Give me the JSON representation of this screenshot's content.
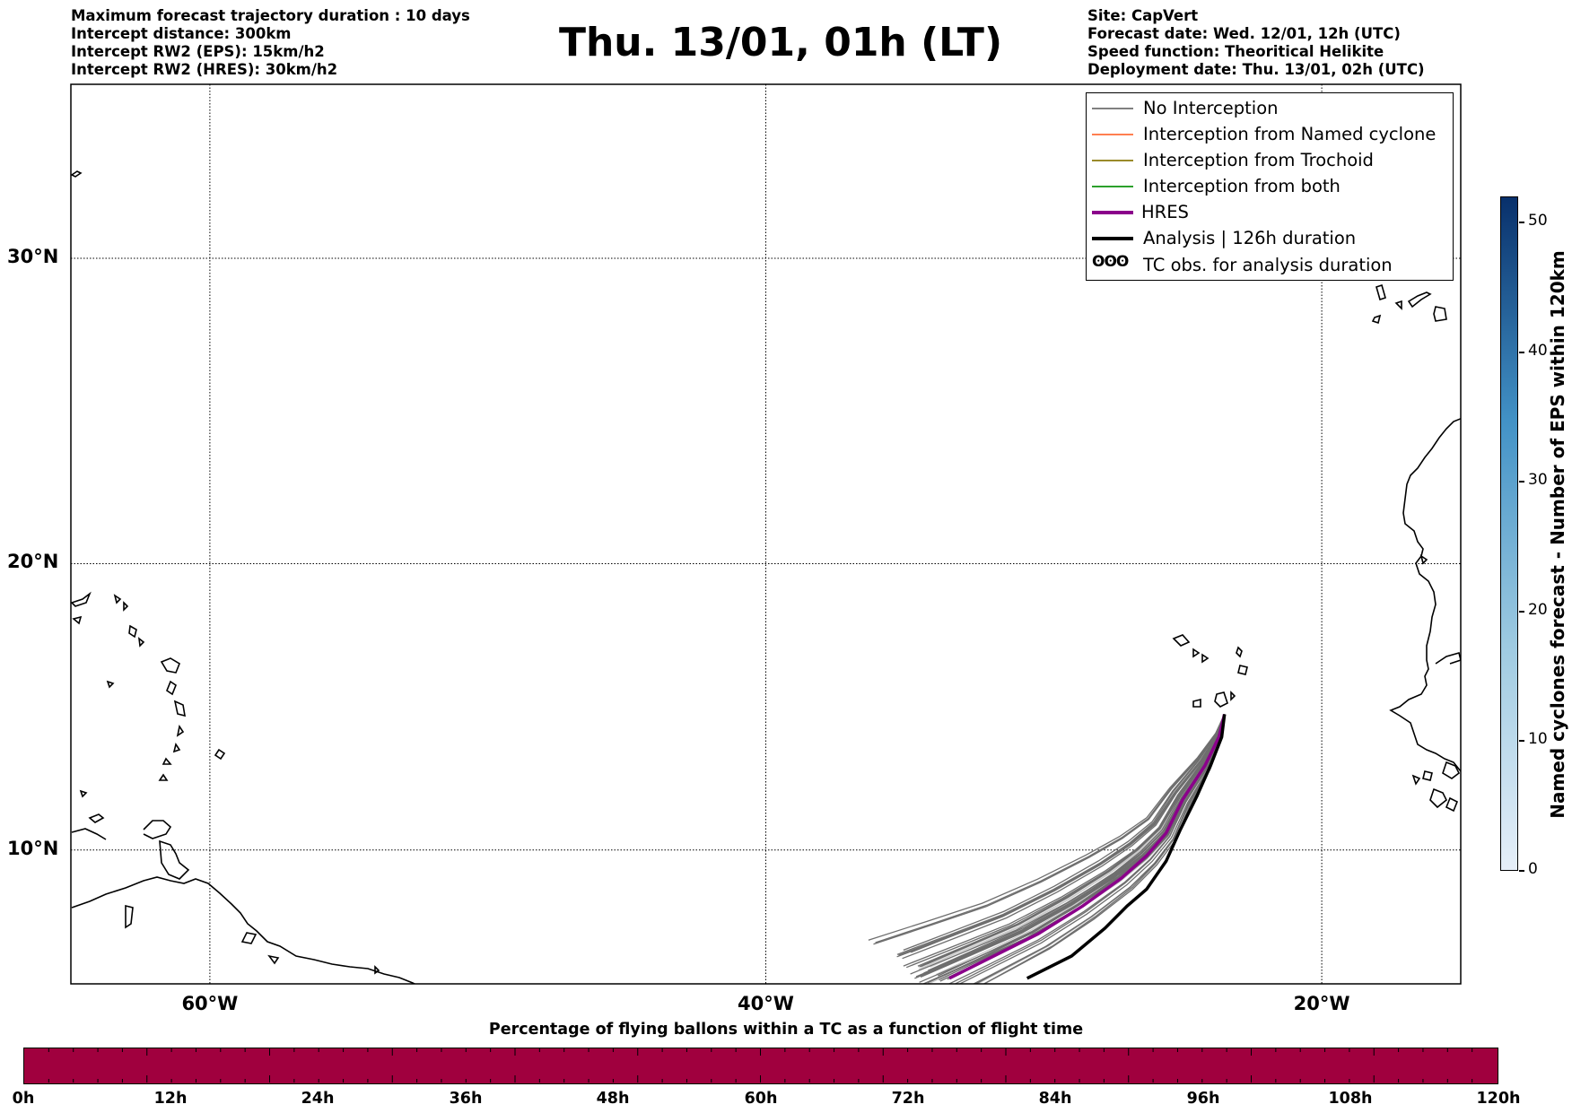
{
  "header_left": [
    "Maximum forecast trajectory duration : 10 days",
    "Intercept distance: 300km",
    "Intercept RW2 (EPS):  15km/h2",
    "Intercept RW2 (HRES): 30km/h2"
  ],
  "header_right": [
    "Site: CapVert",
    "Forecast date: Wed. 12/01, 12h (UTC)",
    "Speed function: Theoritical Helikite",
    "Deployment date: Thu. 13/01, 02h (UTC)"
  ],
  "title": "Thu. 13/01, 01h (LT)",
  "map": {
    "lat_labels": [
      "30°N",
      "20°N",
      "10°N"
    ],
    "lon_labels": [
      "60°W",
      "40°W",
      "20°W"
    ],
    "lat_lines": [
      30,
      20,
      10
    ],
    "lon_lines": [
      -60,
      -40,
      -20
    ],
    "lon_range": [
      -65,
      -15
    ],
    "lat_range": [
      5.2,
      35.3
    ],
    "grid": "dotted"
  },
  "legend": {
    "position": "top-right",
    "items": [
      {
        "label": "No Interception",
        "color": "#808080",
        "style": "thin"
      },
      {
        "label": "Interception from Named cyclone",
        "color": "#ff7f50",
        "style": "thin"
      },
      {
        "label": "Interception from Trochoid",
        "color": "#9a8a2a",
        "style": "thin"
      },
      {
        "label": "Interception from both",
        "color": "#2ca02c",
        "style": "thin"
      },
      {
        "label": "HRES",
        "color": "#8b008b",
        "style": "thick"
      },
      {
        "label": "Analysis | 126h duration",
        "color": "#000000",
        "style": "thick"
      },
      {
        "label": "TC obs. for analysis duration",
        "glyph": "ʘʘʘ",
        "color": "#000000",
        "style": "glyph"
      }
    ]
  },
  "colorbar_vertical": {
    "title": "Named cyclones forecast - Number of EPS within 120km",
    "ticks": [
      "0",
      "10",
      "20",
      "30",
      "40",
      "50"
    ],
    "range": [
      0,
      52
    ],
    "colors": [
      "#e6eff9",
      "#9ecae1",
      "#4292c6",
      "#08306b"
    ]
  },
  "colorbar_horizontal": {
    "title": "Percentage of flying ballons within a TC as a function of flight time",
    "ticks": [
      "0h",
      "12h",
      "24h",
      "36h",
      "48h",
      "60h",
      "72h",
      "84h",
      "96h",
      "108h",
      "120h"
    ],
    "color": "#a0003e"
  },
  "trajectories": {
    "origin": [
      -23.5,
      14.8
    ],
    "hres": [
      [
        -23.5,
        14.8
      ],
      [
        -23.7,
        14.0
      ],
      [
        -24.2,
        13.0
      ],
      [
        -25.0,
        11.8
      ],
      [
        -25.6,
        10.6
      ],
      [
        -26.3,
        9.8
      ],
      [
        -27.2,
        9.0
      ],
      [
        -28.6,
        8.0
      ],
      [
        -30.2,
        7.0
      ],
      [
        -31.8,
        6.2
      ],
      [
        -33.4,
        5.4
      ]
    ],
    "analysis": [
      [
        -23.5,
        14.8
      ],
      [
        -23.6,
        14.0
      ],
      [
        -24.0,
        13.0
      ],
      [
        -24.5,
        11.9
      ],
      [
        -25.1,
        10.7
      ],
      [
        -25.6,
        9.6
      ],
      [
        -26.3,
        8.6
      ],
      [
        -27.0,
        8.0
      ],
      [
        -27.8,
        7.2
      ],
      [
        -29.0,
        6.2
      ],
      [
        -30.6,
        5.4
      ]
    ]
  }
}
